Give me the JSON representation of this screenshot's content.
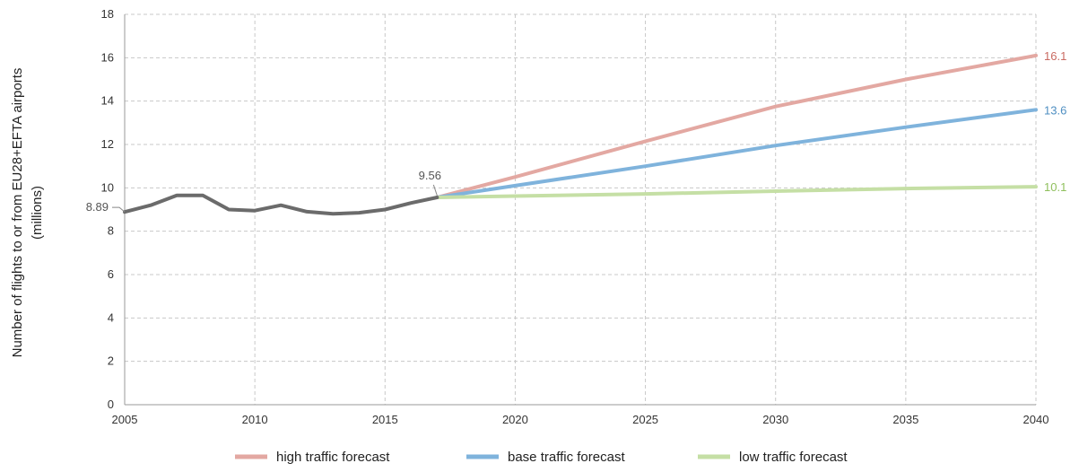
{
  "chart_data": {
    "type": "line",
    "title": "",
    "xlabel": "",
    "ylabel_line1": "Number of flights to or from EU28+EFTA airports",
    "ylabel_line2": "(millions)",
    "xlim": [
      2005,
      2040
    ],
    "ylim": [
      0,
      18
    ],
    "xticks": [
      2005,
      2010,
      2015,
      2020,
      2025,
      2030,
      2035,
      2040
    ],
    "yticks": [
      0,
      2,
      4,
      6,
      8,
      10,
      12,
      14,
      16,
      18
    ],
    "grid": true,
    "legend_position": "bottom",
    "historical": {
      "color": "#6b6b6b",
      "x": [
        2005,
        2006,
        2007,
        2008,
        2009,
        2010,
        2011,
        2012,
        2013,
        2014,
        2015,
        2016,
        2017
      ],
      "y": [
        8.89,
        9.2,
        9.65,
        9.65,
        9.0,
        8.95,
        9.2,
        8.9,
        8.8,
        8.85,
        9.0,
        9.3,
        9.56
      ]
    },
    "series": [
      {
        "name": "high traffic forecast",
        "color": "#e3a8a2",
        "label_color": "#c96a61",
        "x": [
          2017,
          2020,
          2025,
          2030,
          2035,
          2040
        ],
        "y": [
          9.56,
          10.5,
          12.15,
          13.75,
          15.0,
          16.1
        ],
        "end_label": "16.1"
      },
      {
        "name": "base traffic forecast",
        "color": "#7fb3dc",
        "label_color": "#4f8fc2",
        "x": [
          2017,
          2020,
          2025,
          2030,
          2035,
          2040
        ],
        "y": [
          9.56,
          10.1,
          11.0,
          11.95,
          12.8,
          13.6
        ],
        "end_label": "13.6"
      },
      {
        "name": "low traffic forecast",
        "color": "#c5dfa5",
        "label_color": "#8fbf5c",
        "x": [
          2017,
          2020,
          2025,
          2030,
          2035,
          2040
        ],
        "y": [
          9.56,
          9.62,
          9.72,
          9.85,
          9.97,
          10.05
        ],
        "end_label": "10.1"
      }
    ],
    "annotations": [
      {
        "text": "8.89",
        "x": 2005,
        "y": 8.89,
        "color": "#555555"
      },
      {
        "text": "9.56",
        "x": 2017,
        "y": 9.56,
        "color": "#555555"
      }
    ]
  }
}
